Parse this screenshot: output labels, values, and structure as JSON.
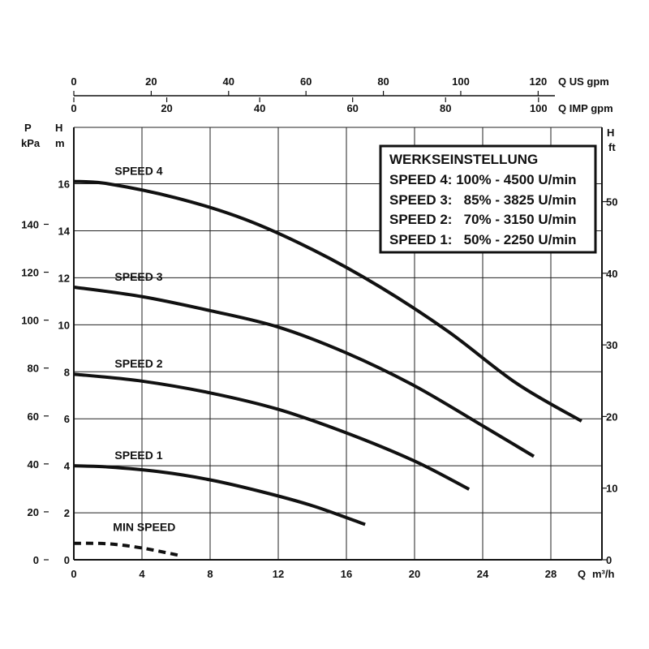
{
  "chart_data": {
    "type": "line",
    "x": {
      "label": "Q",
      "unit": "m³/h",
      "range": [
        0,
        31
      ],
      "ticks": [
        0,
        4,
        8,
        12,
        16,
        20,
        24,
        28
      ]
    },
    "x_top_us": {
      "label": "Q US gpm",
      "ticks": [
        0,
        20,
        40,
        60,
        80,
        100,
        120
      ]
    },
    "x_top_imp": {
      "label": "Q IMP gpm",
      "ticks": [
        0,
        20,
        40,
        60,
        80,
        100
      ]
    },
    "y_head_m": {
      "label": "H",
      "unit": "m",
      "range": [
        0,
        18.4
      ],
      "ticks": [
        0,
        2,
        4,
        6,
        8,
        10,
        12,
        14,
        16
      ]
    },
    "y_head_ft": {
      "label": "H",
      "unit": "ft",
      "ticks": [
        0,
        10,
        20,
        30,
        40,
        50
      ]
    },
    "y_pressure_kpa": {
      "label": "P",
      "unit": "kPa",
      "ticks": [
        0,
        20,
        40,
        60,
        80,
        100,
        120,
        140
      ]
    },
    "grid": true,
    "series": [
      {
        "name": "SPEED 4",
        "style": "solid",
        "points": [
          [
            0,
            16.1
          ],
          [
            2,
            16.0
          ],
          [
            6,
            15.4
          ],
          [
            10,
            14.5
          ],
          [
            14,
            13.2
          ],
          [
            18,
            11.6
          ],
          [
            22,
            9.7
          ],
          [
            26,
            7.5
          ],
          [
            29.8,
            5.9
          ]
        ]
      },
      {
        "name": "SPEED 3",
        "style": "solid",
        "points": [
          [
            0,
            11.6
          ],
          [
            4,
            11.2
          ],
          [
            8,
            10.6
          ],
          [
            12,
            9.9
          ],
          [
            16,
            8.8
          ],
          [
            20,
            7.4
          ],
          [
            24,
            5.7
          ],
          [
            27.0,
            4.4
          ]
        ]
      },
      {
        "name": "SPEED 2",
        "style": "solid",
        "points": [
          [
            0,
            7.9
          ],
          [
            4,
            7.6
          ],
          [
            8,
            7.1
          ],
          [
            12,
            6.4
          ],
          [
            16,
            5.4
          ],
          [
            20,
            4.2
          ],
          [
            23.2,
            3.0
          ]
        ]
      },
      {
        "name": "SPEED 1",
        "style": "solid",
        "points": [
          [
            0,
            4.0
          ],
          [
            2,
            3.95
          ],
          [
            5,
            3.75
          ],
          [
            8,
            3.4
          ],
          [
            11,
            2.9
          ],
          [
            14,
            2.3
          ],
          [
            17.1,
            1.5
          ]
        ]
      },
      {
        "name": "MIN SPEED",
        "style": "dashed",
        "points": [
          [
            0,
            0.7
          ],
          [
            2,
            0.68
          ],
          [
            4,
            0.5
          ],
          [
            6.1,
            0.2
          ]
        ]
      }
    ],
    "legend": {
      "title": "WERKSEINSTELLUNG",
      "lines": [
        "SPEED 4: 100% - 4500 U/min",
        "SPEED 3:   85% - 3825 U/min",
        "SPEED 2:   70% - 3150 U/min",
        "SPEED 1:   50% - 2250 U/min"
      ],
      "placement": "top-right"
    }
  }
}
